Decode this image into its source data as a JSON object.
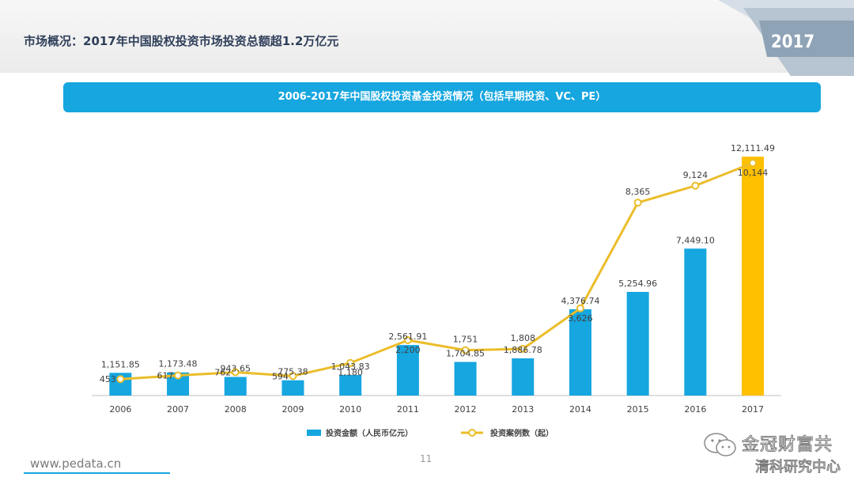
{
  "header": {
    "title": "市场概况：2017年中国股权投资市场投资总额超1.2万亿元",
    "year_badge": "2017"
  },
  "banner": {
    "title": "2006-2017年中国股权投资基金投资情况（包括早期投资、VC、PE）"
  },
  "footer": {
    "url": "www.pedata.cn",
    "page_number": "11"
  },
  "watermark": {
    "line1": "金冠财富共",
    "line2": "清科研究中心",
    "icon": "wechat-icon"
  },
  "colors": {
    "bar": "#16a6e0",
    "bar_highlight": "#ffc000",
    "line": "#ebbd2a",
    "banner": "#16a6e0",
    "title": "#2f3f5a"
  },
  "chart_data": {
    "type": "bar",
    "categories": [
      "2006",
      "2007",
      "2008",
      "2009",
      "2010",
      "2011",
      "2012",
      "2013",
      "2014",
      "2015",
      "2016",
      "2017"
    ],
    "series": [
      {
        "name": "投资金额（人民币亿元）",
        "type": "bar",
        "axis": "left",
        "values": [
          1151.85,
          1173.48,
          943.65,
          775.38,
          1043.83,
          2561.91,
          1704.85,
          1886.78,
          4376.74,
          5254.96,
          7449.1,
          12111.49
        ],
        "labels": [
          "1,151.85",
          "1,173.48",
          "943.65",
          "775.38",
          "1,043.83",
          "2,561.91",
          "1,704.85",
          "1,886.78",
          "4,376.74",
          "5,254.96",
          "7,449.10",
          "12,111.49"
        ]
      },
      {
        "name": "投资案例数（起）",
        "type": "line",
        "axis": "right",
        "values": [
          453,
          617,
          762,
          594,
          1180,
          2200,
          1751,
          1808,
          3626,
          8365,
          9124,
          10144
        ],
        "labels": [
          "453",
          "617",
          "762",
          "594",
          "1,180",
          "2,200",
          "1,751",
          "1,808",
          "3,626",
          "8,365",
          "9,124",
          "10,144"
        ]
      }
    ],
    "legend": "bottom-center",
    "grid": false,
    "highlight_category": "2017"
  }
}
